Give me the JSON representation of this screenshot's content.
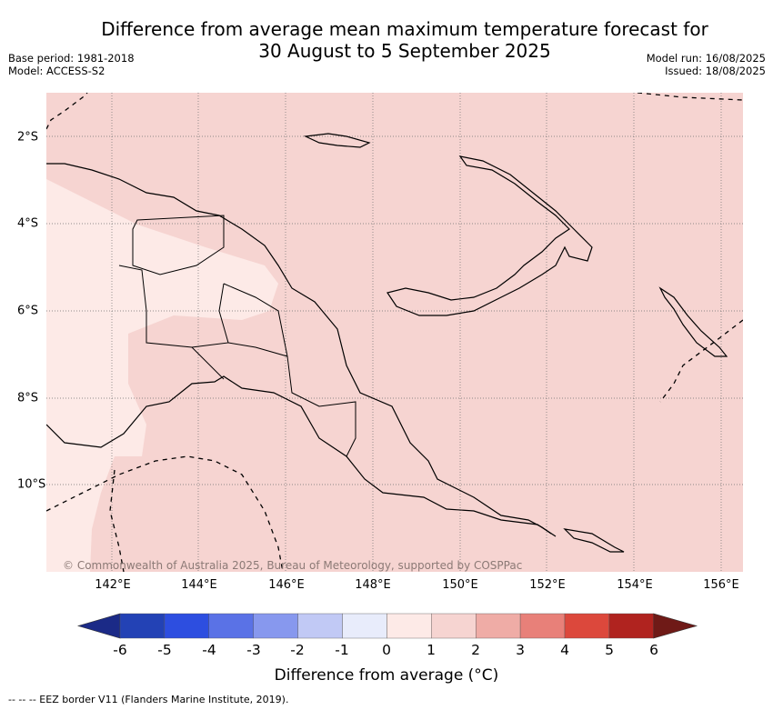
{
  "title_line1": "Difference from average mean maximum temperature forecast for",
  "title_line2": "30 August to 5 September 2025",
  "base_period": "Base period: 1981-2018",
  "model": "Model: ACCESS-S2",
  "model_run": "Model run: 16/08/2025",
  "issued": "Issued: 18/08/2025",
  "credit": "© Commonwealth of Australia 2025, Bureau of Meteorology, supported by COSPPac",
  "lon_labels": [
    "142°E",
    "144°E",
    "146°E",
    "148°E",
    "150°E",
    "152°E",
    "154°E",
    "156°E"
  ],
  "lat_labels": [
    "2°S",
    "4°S",
    "6°S",
    "8°S",
    "10°S"
  ],
  "colorbar": {
    "ticks": [
      "-6",
      "-5",
      "-4",
      "-3",
      "-2",
      "-1",
      "0",
      "1",
      "2",
      "3",
      "4",
      "5",
      "6"
    ],
    "colors": [
      "#1b2a87",
      "#2342b5",
      "#2d4ee0",
      "#5a72e6",
      "#8798ee",
      "#c1c9f5",
      "#e8ecfb",
      "#fdeae7",
      "#f6d4d1",
      "#efaca6",
      "#e88079",
      "#dc483c",
      "#b0231f",
      "#6f1a17"
    ],
    "label": "Difference from average (°C)"
  },
  "legend_note": "-- -- -- EEZ border V11 (Flanders Marine Institute, 2019).",
  "map_fill": {
    "background": "#f6d4d1",
    "low_band": "#fdeae7"
  }
}
